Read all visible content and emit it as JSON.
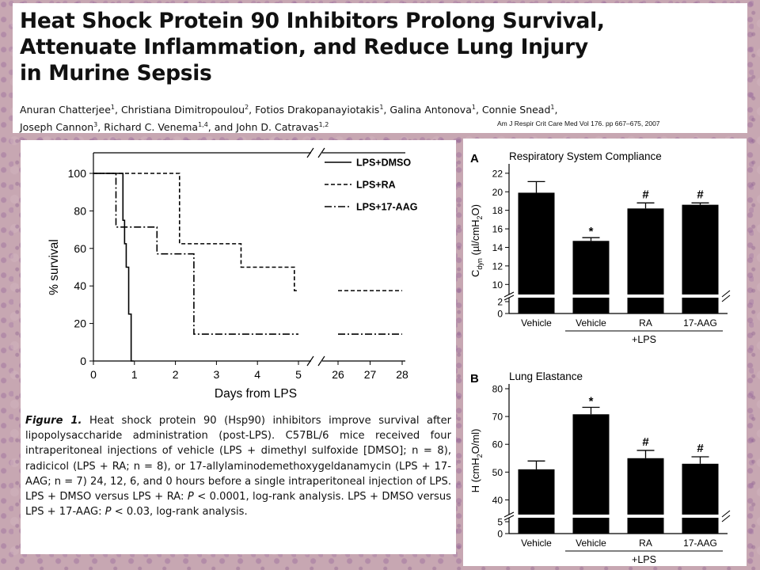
{
  "header": {
    "title_lines": [
      "Heat Shock Protein 90 Inhibitors Prolong Survival,",
      "Attenuate Inflammation, and Reduce Lung Injury",
      "in Murine Sepsis"
    ],
    "authors_line1": [
      {
        "name": "Anuran Chatterjee",
        "sup": "1"
      },
      {
        "name": "Christiana Dimitropoulou",
        "sup": "2"
      },
      {
        "name": "Fotios Drakopanayiotakis",
        "sup": "1"
      },
      {
        "name": "Galina Antonova",
        "sup": "1"
      },
      {
        "name": "Connie Snead",
        "sup": "1"
      }
    ],
    "authors_line2": [
      {
        "name": "Joseph Cannon",
        "sup": "3"
      },
      {
        "name": "Richard C. Venema",
        "sup": "1,4"
      },
      {
        "name": "John D. Catravas",
        "sup": "1,2"
      }
    ],
    "authors_conj": "and",
    "citation": "Am J Respir Crit Care Med   Vol 176. pp 667–675, 2007"
  },
  "figure1": {
    "caption_label": "Figure 1.",
    "caption_parts": [
      " Heat shock protein 90 (Hsp90) inhibitors improve survival after lipopolysaccharide administration (post-LPS). C57BL/6 mice received four intraperitoneal injections of vehicle (LPS + dimethyl sulfoxide [DMSO]; n = 8), radicicol (LPS + RA; n = 8), or 17-allylaminodemethoxygeldanamycin (LPS + 17-AAG; n = 7) 24, 12, 6, and 0 hours before a single intraperitoneal injection of LPS. LPS + DMSO versus LPS + RA: ",
      "P",
      " < 0.0001, log-rank analysis. LPS + DMSO versus LPS + 17-AAG: ",
      "P",
      " < 0.03, log-rank analysis."
    ]
  },
  "chart_data": [
    {
      "type": "line",
      "xlabel": "Days from LPS",
      "ylabel": "% survival",
      "x_ticks": [
        "0",
        "1",
        "2",
        "3",
        "4",
        "5",
        "26",
        "27",
        "28"
      ],
      "y_ticks": [
        "0",
        "20",
        "40",
        "60",
        "80",
        "100"
      ],
      "ylim": [
        0,
        100
      ],
      "legend_position": "top-right",
      "series": [
        {
          "name": "LPS+DMSO",
          "style": "solid",
          "points": [
            [
              0,
              100
            ],
            [
              0.72,
              100
            ],
            [
              0.72,
              75
            ],
            [
              0.76,
              75
            ],
            [
              0.76,
              62.5
            ],
            [
              0.8,
              62.5
            ],
            [
              0.8,
              50
            ],
            [
              0.86,
              50
            ],
            [
              0.86,
              25
            ],
            [
              0.92,
              25
            ],
            [
              0.92,
              0
            ],
            [
              0.98,
              0
            ]
          ]
        },
        {
          "name": "LPS+RA",
          "style": "dashed",
          "points": [
            [
              0,
              100
            ],
            [
              2.1,
              100
            ],
            [
              2.1,
              62.5
            ],
            [
              3.6,
              62.5
            ],
            [
              3.6,
              50
            ],
            [
              4.9,
              50
            ],
            [
              4.9,
              37.5
            ],
            [
              5.0,
              37.5
            ],
            [
              26.0,
              37.5
            ],
            [
              28.0,
              37.5
            ]
          ]
        },
        {
          "name": "LPS+17-AAG",
          "style": "dashdot",
          "points": [
            [
              0,
              100
            ],
            [
              0.55,
              100
            ],
            [
              0.55,
              71.4
            ],
            [
              1.55,
              71.4
            ],
            [
              1.55,
              57.1
            ],
            [
              2.45,
              57.1
            ],
            [
              2.45,
              14.3
            ],
            [
              5.0,
              14.3
            ],
            [
              26.0,
              14.3
            ],
            [
              28.0,
              14.3
            ]
          ]
        }
      ]
    },
    {
      "type": "bar",
      "panel_label": "A",
      "title": "Respiratory System Compliance",
      "ylabel_main": "C",
      "ylabel_sub": "dyn",
      "ylabel_rest": " (µl/cmH",
      "ylabel_sub2": "2",
      "ylabel_end": "O)",
      "categories": [
        "Vehicle",
        "Vehicle",
        "RA",
        "17-AAG"
      ],
      "group_label": "+LPS",
      "values": [
        19.9,
        14.7,
        18.2,
        18.6
      ],
      "errors": [
        1.2,
        0.35,
        0.6,
        0.2
      ],
      "annotations": [
        "",
        "*",
        "#",
        "#"
      ],
      "y_ticks_upper": [
        "10",
        "12",
        "14",
        "16",
        "18",
        "20",
        "22"
      ],
      "y_ticks_lower": [
        "0",
        "2"
      ],
      "ylim_upper": [
        9,
        22.5
      ]
    },
    {
      "type": "bar",
      "panel_label": "B",
      "title": "Lung Elastance",
      "ylabel_main": "H (cmH",
      "ylabel_sub": "2",
      "ylabel_rest": "O/ml)",
      "categories": [
        "Vehicle",
        "Vehicle",
        "RA",
        "17-AAG"
      ],
      "group_label": "+LPS",
      "values": [
        51,
        70.8,
        55,
        53
      ],
      "errors": [
        3,
        2.5,
        2.8,
        2.5
      ],
      "annotations": [
        "",
        "*",
        "#",
        "#"
      ],
      "y_ticks_upper": [
        "40",
        "50",
        "60",
        "70",
        "80"
      ],
      "y_ticks_lower": [
        "0",
        "5"
      ],
      "ylim_upper": [
        35,
        80
      ]
    }
  ]
}
